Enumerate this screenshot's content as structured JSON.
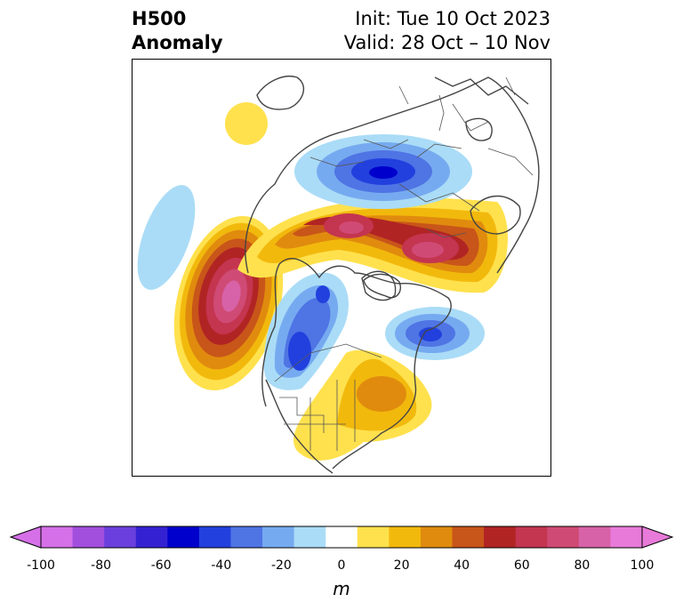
{
  "title": {
    "left_line1": "H500",
    "left_line2": "Anomaly",
    "right_line1": "Init: Tue 10 Oct 2023",
    "right_line2": "Valid: 28 Oct – 10 Nov"
  },
  "map": {
    "field": "500 hPa geopotential height anomaly",
    "projection": "north-polar stereographic",
    "features": [
      {
        "kind": "positive",
        "region": "Gulf of Alaska / NE Pacific",
        "peak_m": 90
      },
      {
        "kind": "positive",
        "region": "Arctic Ocean to northern Eurasia ridge",
        "peak_m": 80
      },
      {
        "kind": "positive",
        "region": "Eastern United States",
        "peak_m": 40
      },
      {
        "kind": "positive",
        "region": "Kamchatka",
        "peak_m": 20
      },
      {
        "kind": "negative",
        "region": "Western Canada / US northern Rockies",
        "peak_m": -60
      },
      {
        "kind": "negative",
        "region": "Central Asia / western Siberia",
        "peak_m": -60
      },
      {
        "kind": "negative",
        "region": "North Atlantic / Greenland",
        "peak_m": -50
      },
      {
        "kind": "negative",
        "region": "Eastern Pacific",
        "peak_m": -20
      }
    ]
  },
  "colorbar": {
    "unit": "m",
    "ticks": [
      "-100",
      "-80",
      "-60",
      "-40",
      "-20",
      "0",
      "20",
      "40",
      "60",
      "80",
      "100"
    ],
    "levels": [
      -100,
      -90,
      -80,
      -70,
      -60,
      -50,
      -40,
      -30,
      -20,
      -10,
      10,
      20,
      30,
      40,
      50,
      60,
      70,
      80,
      90,
      100
    ],
    "colors": [
      "#d670e8",
      "#a24fde",
      "#6b3fdd",
      "#3422d2",
      "#0000cc",
      "#2240dd",
      "#4f74e4",
      "#76aaf0",
      "#aadcf7",
      "#ffffff",
      "#ffe14d",
      "#f2b90d",
      "#e08b0e",
      "#c85519",
      "#b12424",
      "#c43550",
      "#cf4b75",
      "#d862a7",
      "#e87ad9"
    ],
    "under_color": "#d670e8",
    "over_color": "#e87ad9"
  },
  "colors": {
    "coast": "#444444",
    "frame": "#000000"
  }
}
